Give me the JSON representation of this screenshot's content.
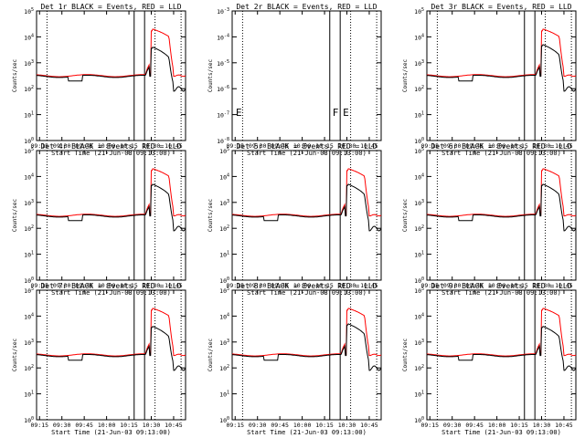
{
  "chart_data": {
    "type": "line",
    "layout": {
      "rows": 3,
      "cols": 3
    },
    "common": {
      "xlabel": "Start Time (21-Jun-03 09:13:00)",
      "ylabel": "Counts/sec",
      "x_tick_labels": [
        "09:15",
        "09:30",
        "09:45",
        "10:00",
        "10:15",
        "10:30",
        "10:45"
      ],
      "x_ticks_min": [
        15,
        30,
        45,
        60,
        75,
        90,
        105
      ],
      "xlim_min": [
        13,
        113
      ],
      "y_scale": "log",
      "y_exponents": [
        0,
        1,
        2,
        3,
        4,
        5
      ],
      "ylim": [
        1,
        100000
      ],
      "dotted_vlines_min": [
        20,
        92.5,
        110
      ],
      "solid_vlines_min": [
        78.5,
        85.5
      ],
      "colors": {
        "events": "#000000",
        "lld": "#ff0000"
      }
    },
    "panels": [
      {
        "title": "Det 1r BLACK = Events, RED = LLD",
        "events_peak": 4000,
        "lld_peak": 20000,
        "has_data": true,
        "marks": []
      },
      {
        "title": "Det 2r BLACK = Events, RED = LLD",
        "has_data": false,
        "y_exponents": [
          -8,
          -7,
          -6,
          -5,
          -4,
          -3
        ],
        "marks": [
          "E",
          "F",
          "E"
        ]
      },
      {
        "title": "Det 3r BLACK = Events, RED = LLD",
        "events_peak": 5000,
        "lld_peak": 20000,
        "has_data": true,
        "marks": []
      },
      {
        "title": "Det 4r BLACK = Events, RED = LLD",
        "events_peak": 5000,
        "lld_peak": 20000,
        "has_data": true,
        "marks": []
      },
      {
        "title": "Det 5r BLACK = Events, RED = LLD",
        "events_peak": 5000,
        "lld_peak": 20000,
        "has_data": true,
        "marks": []
      },
      {
        "title": "Det 6r BLACK = Events, RED = LLD",
        "events_peak": 5000,
        "lld_peak": 20000,
        "has_data": true,
        "marks": []
      },
      {
        "title": "Det 7r BLACK = Events, RED = LLD",
        "events_peak": 4000,
        "lld_peak": 20000,
        "has_data": true,
        "marks": []
      },
      {
        "title": "Det 8r BLACK = Events, RED = LLD",
        "events_peak": 5000,
        "lld_peak": 20000,
        "has_data": true,
        "marks": []
      },
      {
        "title": "Det 9r BLACK = Events, RED = LLD",
        "events_peak": 4000,
        "lld_peak": 20000,
        "has_data": true,
        "marks": []
      }
    ]
  }
}
